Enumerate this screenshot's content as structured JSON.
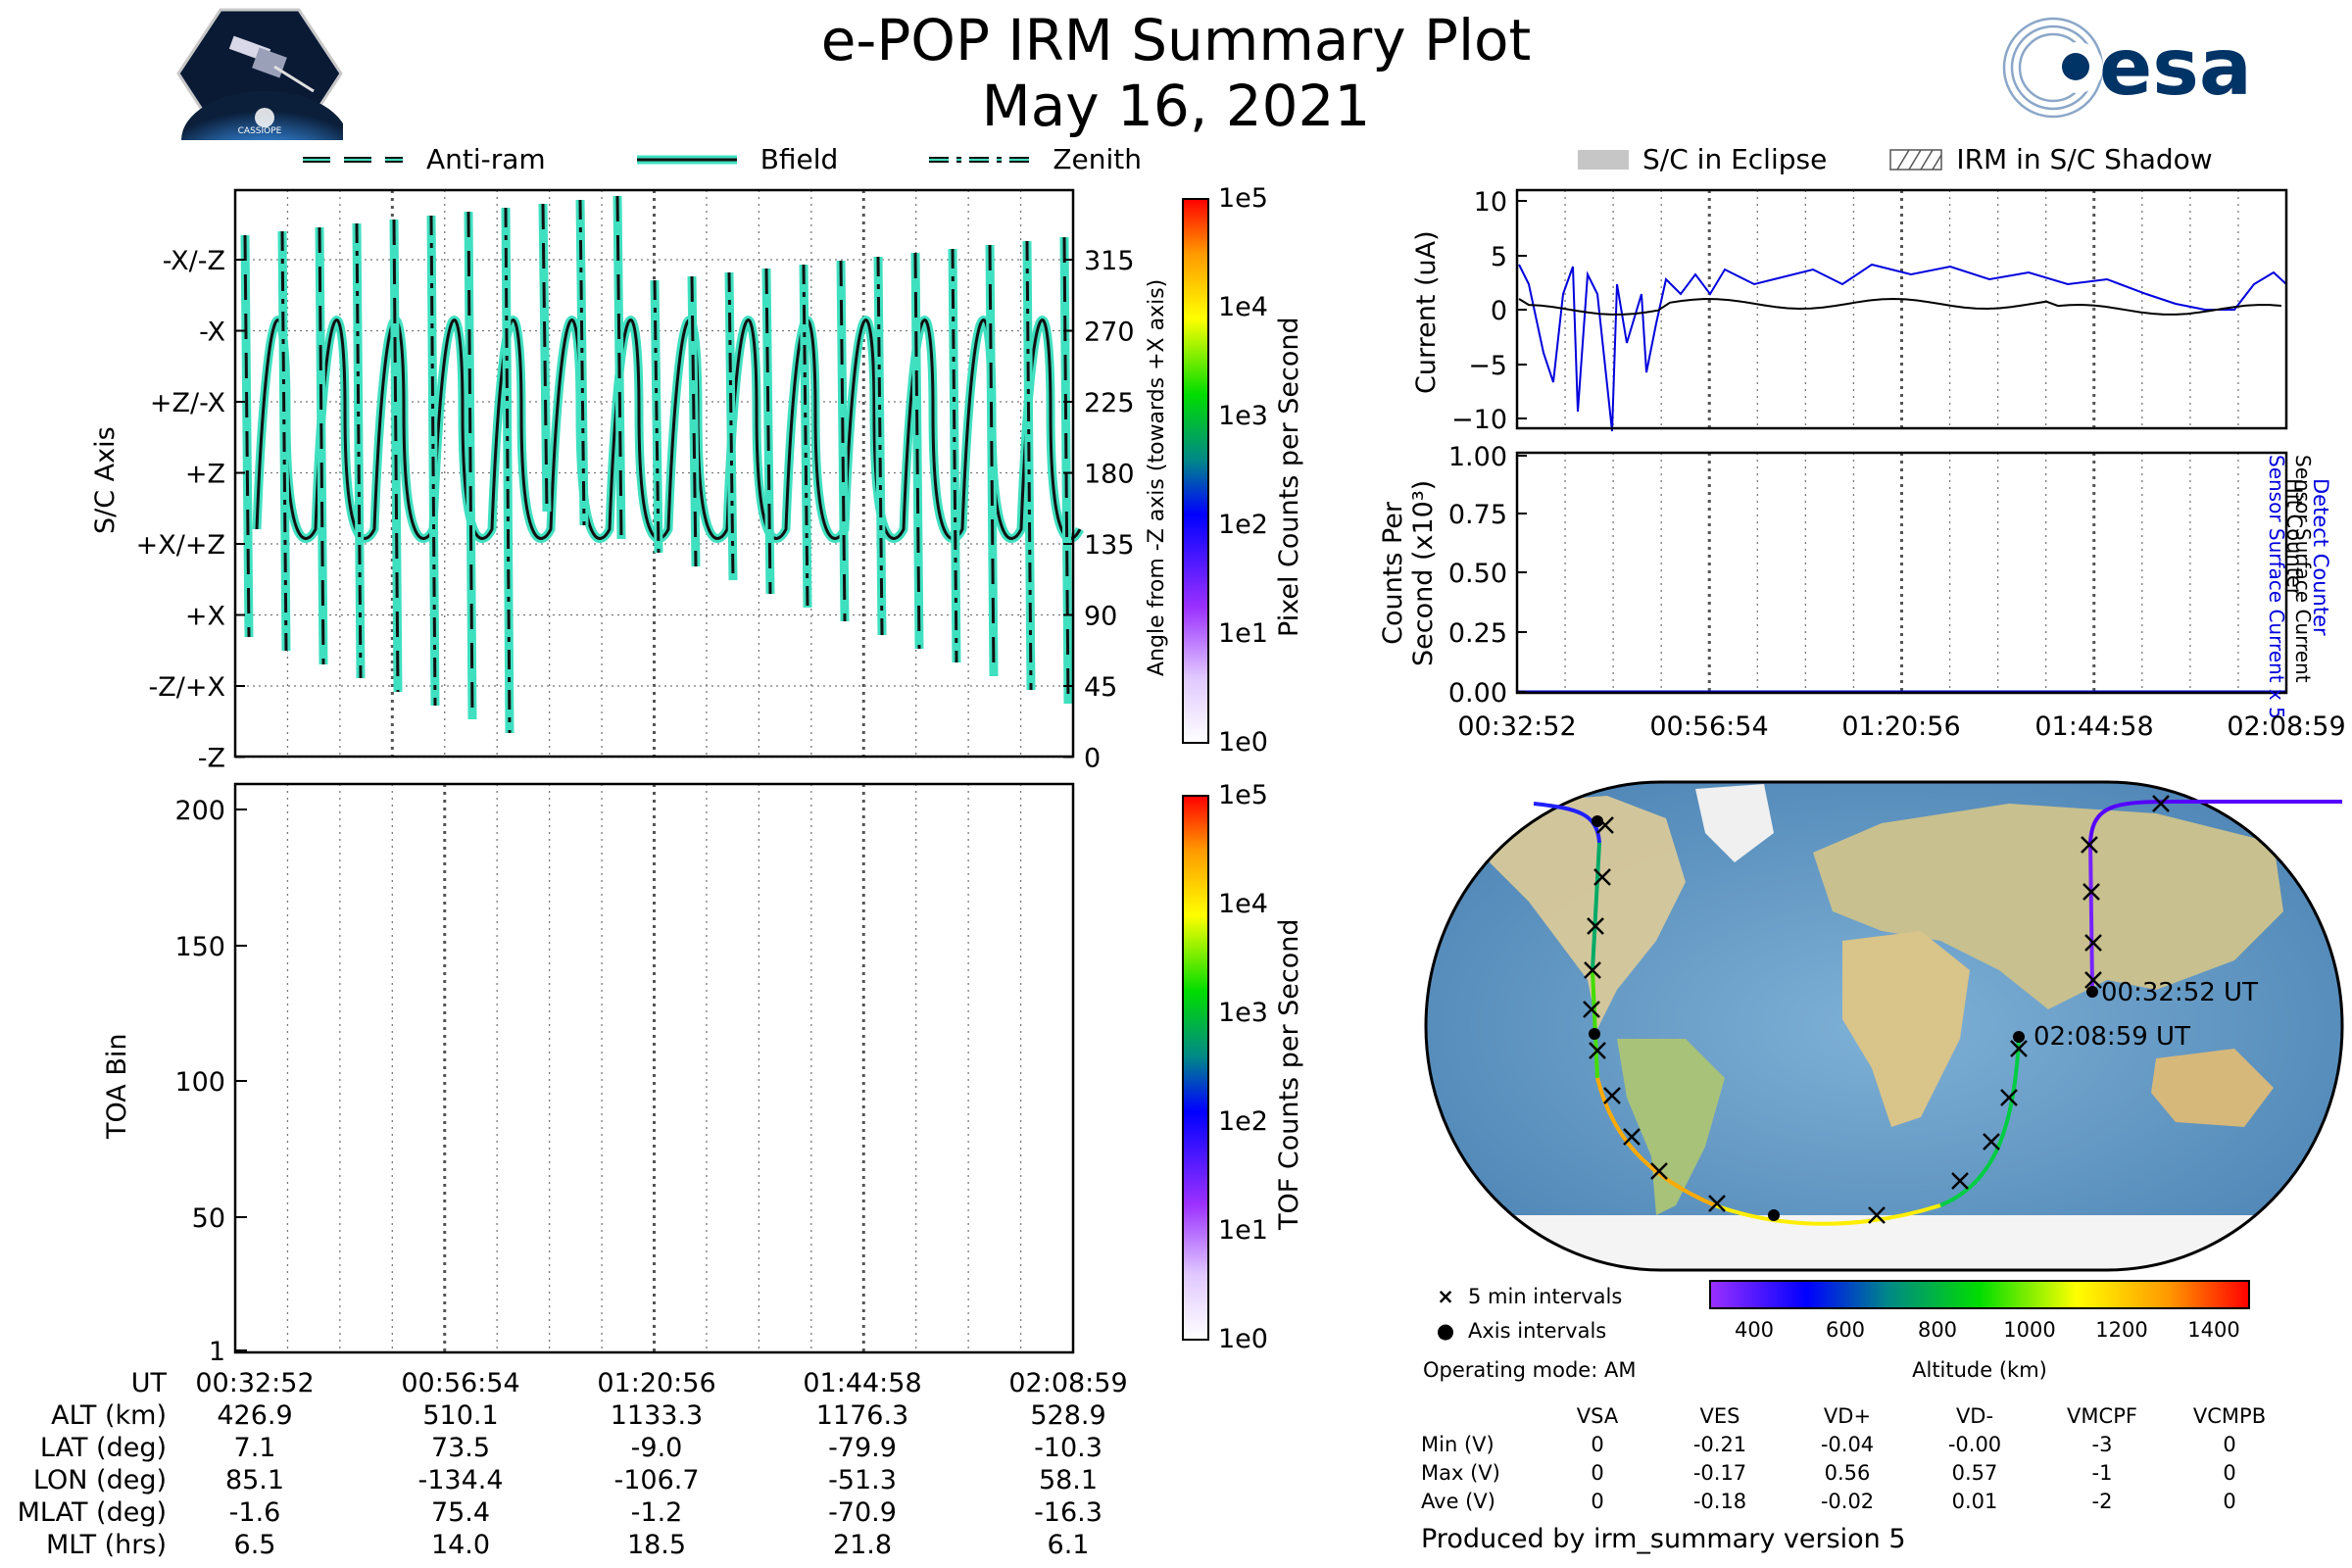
{
  "title": {
    "line1": "e-POP IRM Summary Plot",
    "line2": "May 16, 2021"
  },
  "logos": {
    "cassiope": "CASSIOPE",
    "esa": "esa"
  },
  "attitude_legend": [
    "Anti-ram",
    "Bfield",
    "Zenith"
  ],
  "eclipse_legend": [
    "S/C in Eclipse",
    "IRM in S/C Shadow"
  ],
  "chart_data": [
    {
      "type": "line",
      "id": "attitude",
      "ylabel": "S/C Axis",
      "ylabel_right": "Angle from -Z axis (towards +X axis)",
      "ylim": [
        0,
        360
      ],
      "yticks_left": [
        "-X/-Z",
        "-X",
        "+Z/-X",
        "+Z",
        "+X/+Z",
        "+X",
        "-Z/+X",
        "-Z"
      ],
      "yticks_right": [
        "315",
        "270",
        "225",
        "180",
        "135",
        "90",
        "45",
        "0"
      ],
      "colorbar": {
        "label": "Pixel Counts per Second",
        "ticks": [
          "1e5",
          "1e4",
          "1e3",
          "1e2",
          "1e1",
          "1e0"
        ]
      },
      "series": [
        {
          "name": "Anti-ram"
        },
        {
          "name": "Bfield"
        },
        {
          "name": "Zenith"
        }
      ]
    },
    {
      "type": "heatmap",
      "id": "toa",
      "ylabel": "TOA Bin",
      "yticks": [
        "200",
        "150",
        "100",
        "50",
        "1"
      ],
      "ylim": [
        1,
        210
      ],
      "colorbar": {
        "label": "TOF Counts per Second",
        "ticks": [
          "1e5",
          "1e4",
          "1e3",
          "1e2",
          "1e1",
          "1e0"
        ]
      }
    },
    {
      "type": "line",
      "id": "current",
      "ylabel": "Current (uA)",
      "ylabel_right_1": "Sensor Surface Current x 5",
      "ylabel_right_2": "Sensor Surface Current",
      "ylim": [
        -11,
        11
      ],
      "yticks": [
        "10",
        "5",
        "0",
        "−5",
        "−10"
      ]
    },
    {
      "type": "line",
      "id": "counts",
      "ylabel_1": "Counts Per",
      "ylabel_2": "Second (x10³)",
      "ylabel_right_1": "Detect Counter",
      "ylabel_right_2": "Hit Counter",
      "ylim": [
        0,
        1
      ],
      "yticks": [
        "1.00",
        "0.75",
        "0.50",
        "0.25",
        "0.00"
      ],
      "xticks": [
        "00:32:52",
        "00:56:54",
        "01:20:56",
        "01:44:58",
        "02:08:59"
      ]
    }
  ],
  "time_table": {
    "row_labels": [
      "UT",
      "ALT (km)",
      "LAT (deg)",
      "LON (deg)",
      "MLAT (deg)",
      "MLT (hrs)"
    ],
    "columns": [
      [
        "00:32:52",
        "426.9",
        "7.1",
        "85.1",
        "-1.6",
        "6.5"
      ],
      [
        "00:56:54",
        "510.1",
        "73.5",
        "-134.4",
        "75.4",
        "14.0"
      ],
      [
        "01:20:56",
        "1133.3",
        "-9.0",
        "-106.7",
        "-1.2",
        "18.5"
      ],
      [
        "01:44:58",
        "1176.3",
        "-79.9",
        "-51.3",
        "-70.9",
        "21.8"
      ],
      [
        "02:08:59",
        "528.9",
        "-10.3",
        "58.1",
        "-16.3",
        "6.1"
      ]
    ]
  },
  "map": {
    "start_label": "00:32:52 UT",
    "end_label": "02:08:59 UT",
    "legend": [
      "5 min intervals",
      "Axis intervals"
    ],
    "altitude_label": "Altitude (km)",
    "altitude_ticks": [
      "400",
      "600",
      "800",
      "1000",
      "1200",
      "1400"
    ],
    "operating_mode": "Operating mode: AM"
  },
  "stats": {
    "headers": [
      "",
      "VSA",
      "VES",
      "VD+",
      "VD-",
      "VMCPF",
      "VCMPB"
    ],
    "rows": [
      [
        "Min (V)",
        "0",
        "-0.21",
        "-0.04",
        "-0.00",
        "-3",
        "0"
      ],
      [
        "Max (V)",
        "0",
        "-0.17",
        "0.56",
        "0.57",
        "-1",
        "0"
      ],
      [
        "Ave (V)",
        "0",
        "-0.18",
        "-0.02",
        "0.01",
        "-2",
        "0"
      ]
    ]
  },
  "footer": "Produced by irm_summary version 5"
}
